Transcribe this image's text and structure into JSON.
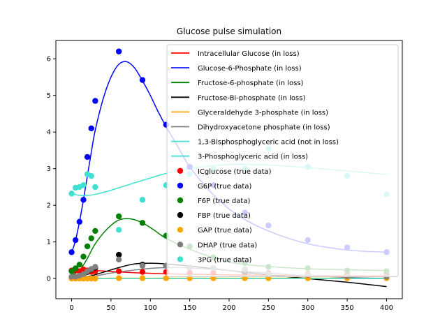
{
  "chart_data": {
    "type": "line",
    "title": "Glucose pulse simulation",
    "xlabel": "",
    "ylabel": "",
    "xlim": [
      -20,
      420
    ],
    "ylim": [
      -0.55,
      6.5
    ],
    "x_ticks": [
      0,
      50,
      100,
      150,
      200,
      250,
      300,
      350,
      400
    ],
    "y_ticks": [
      0,
      1,
      2,
      3,
      4,
      5,
      6
    ],
    "grid": false,
    "legend_position": "top-right",
    "model_series": [
      {
        "name": "Intracellular Glucose (in loss)",
        "color": "#ff0000",
        "x": [
          0,
          5,
          10,
          20,
          30,
          45,
          60,
          90,
          120,
          150,
          200,
          250,
          300,
          350,
          400
        ],
        "y": [
          0.05,
          0.15,
          0.2,
          0.22,
          0.22,
          0.2,
          0.18,
          0.15,
          0.13,
          0.12,
          0.1,
          0.09,
          0.08,
          0.07,
          0.07
        ]
      },
      {
        "name": "Glucose-6-Phosphate (in loss)",
        "color": "#0000ff",
        "x": [
          0,
          5,
          10,
          15,
          20,
          25,
          30,
          40,
          50,
          60,
          70,
          80,
          90,
          100,
          110,
          120,
          135,
          150,
          175,
          200,
          225,
          250,
          275,
          300,
          325,
          350,
          375,
          400
        ],
        "y": [
          0.7,
          1.05,
          1.55,
          2.15,
          2.8,
          3.45,
          4.05,
          4.9,
          5.5,
          5.85,
          5.92,
          5.75,
          5.4,
          5.0,
          4.55,
          4.15,
          3.6,
          3.05,
          2.4,
          1.9,
          1.55,
          1.3,
          1.1,
          0.95,
          0.85,
          0.78,
          0.74,
          0.72
        ]
      },
      {
        "name": "Fructose-6-phosphate (in loss)",
        "color": "#008000",
        "x": [
          0,
          10,
          20,
          30,
          45,
          60,
          75,
          90,
          105,
          120,
          150,
          200,
          250,
          300,
          350,
          400
        ],
        "y": [
          0.1,
          0.22,
          0.55,
          0.95,
          1.35,
          1.6,
          1.63,
          1.52,
          1.32,
          1.1,
          0.8,
          0.45,
          0.33,
          0.27,
          0.24,
          0.22
        ]
      },
      {
        "name": "Fructose-Bi-phosphate (in loss)",
        "color": "#000000",
        "x": [
          0,
          20,
          40,
          60,
          80,
          100,
          120,
          150,
          180,
          200,
          250,
          300,
          350,
          400
        ],
        "y": [
          0.0,
          0.05,
          0.17,
          0.3,
          0.4,
          0.42,
          0.4,
          0.34,
          0.27,
          0.22,
          0.1,
          0.0,
          -0.1,
          -0.22
        ]
      },
      {
        "name": "Glyceraldehyde 3-phosphate (in loss)",
        "color": "#ffa500",
        "x": [
          0,
          50,
          100,
          150,
          200,
          250,
          300,
          350,
          400
        ],
        "y": [
          0.0,
          0.01,
          0.01,
          0.01,
          0.01,
          0.01,
          0.01,
          0.01,
          0.01
        ]
      },
      {
        "name": "Dihydroxyacetone phosphate (in loss)",
        "color": "#808080",
        "x": [
          0,
          25,
          50,
          75,
          100,
          130,
          160,
          200,
          250,
          300,
          350,
          400
        ],
        "y": [
          0.0,
          0.05,
          0.15,
          0.22,
          0.28,
          0.3,
          0.28,
          0.22,
          0.15,
          0.08,
          0.03,
          0.0
        ]
      },
      {
        "name": "1,3-Bisphosphoglyceric acid (not in loss)",
        "color": "#40e0d0",
        "x": [
          0,
          50,
          100,
          150,
          200,
          250,
          300,
          350,
          400
        ],
        "y": [
          0.0,
          0.0,
          0.0,
          0.0,
          0.0,
          0.0,
          0.0,
          0.0,
          0.0
        ]
      },
      {
        "name": "3-Phosphoglyceric acid  (in loss)",
        "color": "#40e0d0",
        "x": [
          0,
          10,
          20,
          30,
          45,
          60,
          90,
          120,
          150,
          180,
          210,
          250,
          300,
          350,
          400
        ],
        "y": [
          2.32,
          2.27,
          2.27,
          2.3,
          2.38,
          2.48,
          2.68,
          2.87,
          3.0,
          3.08,
          3.12,
          3.1,
          3.03,
          2.94,
          2.84
        ]
      }
    ],
    "data_series": [
      {
        "name": "ICglucose (true data)",
        "color": "#ff0000",
        "x": [
          0,
          5,
          10,
          15,
          20,
          25,
          30,
          60,
          90,
          120,
          150,
          180,
          220,
          250,
          300,
          350,
          400
        ],
        "y": [
          0.22,
          0.22,
          0.2,
          0.25,
          0.22,
          0.18,
          0.2,
          0.2,
          0.18,
          0.18,
          0.15,
          0.15,
          0.15,
          0.15,
          0.12,
          0.1,
          0.1
        ]
      },
      {
        "name": "G6P (true data)",
        "color": "#0000ff",
        "x": [
          0,
          5,
          10,
          15,
          20,
          25,
          30,
          60,
          90,
          120,
          150,
          180,
          220,
          250,
          300,
          350,
          400
        ],
        "y": [
          0.72,
          1.05,
          1.55,
          2.15,
          3.32,
          4.1,
          4.85,
          6.2,
          5.42,
          4.2,
          3.05,
          2.55,
          1.8,
          1.45,
          1.05,
          0.85,
          0.72
        ]
      },
      {
        "name": "F6P (true data)",
        "color": "#008000",
        "x": [
          0,
          5,
          10,
          15,
          20,
          25,
          30,
          60,
          90,
          120,
          150,
          180,
          220,
          250,
          300,
          350,
          400
        ],
        "y": [
          0.2,
          0.28,
          0.38,
          0.6,
          0.88,
          1.1,
          1.3,
          1.7,
          1.52,
          1.17,
          0.88,
          0.58,
          0.42,
          0.32,
          0.28,
          0.22,
          0.2
        ]
      },
      {
        "name": "FBP (true data)",
        "color": "#000000",
        "x": [
          0,
          5,
          10,
          15,
          20,
          25,
          30,
          60,
          90,
          120,
          150,
          180,
          220,
          250,
          300,
          350,
          400
        ],
        "y": [
          0.02,
          0.02,
          0.04,
          0.1,
          0.18,
          0.25,
          0.3,
          0.65,
          0.38,
          0.35,
          0.3,
          0.28,
          0.18,
          0.1,
          0.06,
          0.05,
          0.06
        ]
      },
      {
        "name": "GAP (true data)",
        "color": "#ffa500",
        "x": [
          0,
          5,
          10,
          15,
          20,
          25,
          30,
          60,
          90,
          120,
          150,
          180,
          220,
          250,
          300,
          350,
          400
        ],
        "y": [
          0.0,
          0.0,
          0.0,
          0.0,
          0.0,
          0.0,
          0.0,
          0.01,
          0.01,
          0.01,
          0.01,
          0.01,
          0.01,
          0.01,
          0.01,
          0.01,
          0.01
        ]
      },
      {
        "name": "DHAP (true data)",
        "color": "#808080",
        "x": [
          0,
          5,
          10,
          15,
          20,
          25,
          30,
          60,
          90,
          120,
          150,
          180,
          220,
          250,
          300,
          350,
          400
        ],
        "y": [
          0.05,
          0.05,
          0.08,
          0.12,
          0.2,
          0.26,
          0.32,
          0.52,
          0.35,
          0.35,
          0.3,
          0.28,
          0.25,
          0.12,
          0.1,
          0.06,
          0.05
        ]
      },
      {
        "name": "3PG (true data)",
        "color": "#40e0d0",
        "x": [
          0,
          5,
          10,
          15,
          20,
          25,
          30,
          60,
          90,
          120,
          150,
          180,
          220,
          250,
          300,
          350,
          400
        ],
        "y": [
          2.32,
          2.48,
          2.5,
          2.55,
          2.85,
          2.8,
          2.5,
          1.33,
          2.15,
          2.55,
          2.85,
          2.98,
          3.0,
          3.55,
          3.05,
          2.8,
          2.3
        ]
      }
    ]
  }
}
